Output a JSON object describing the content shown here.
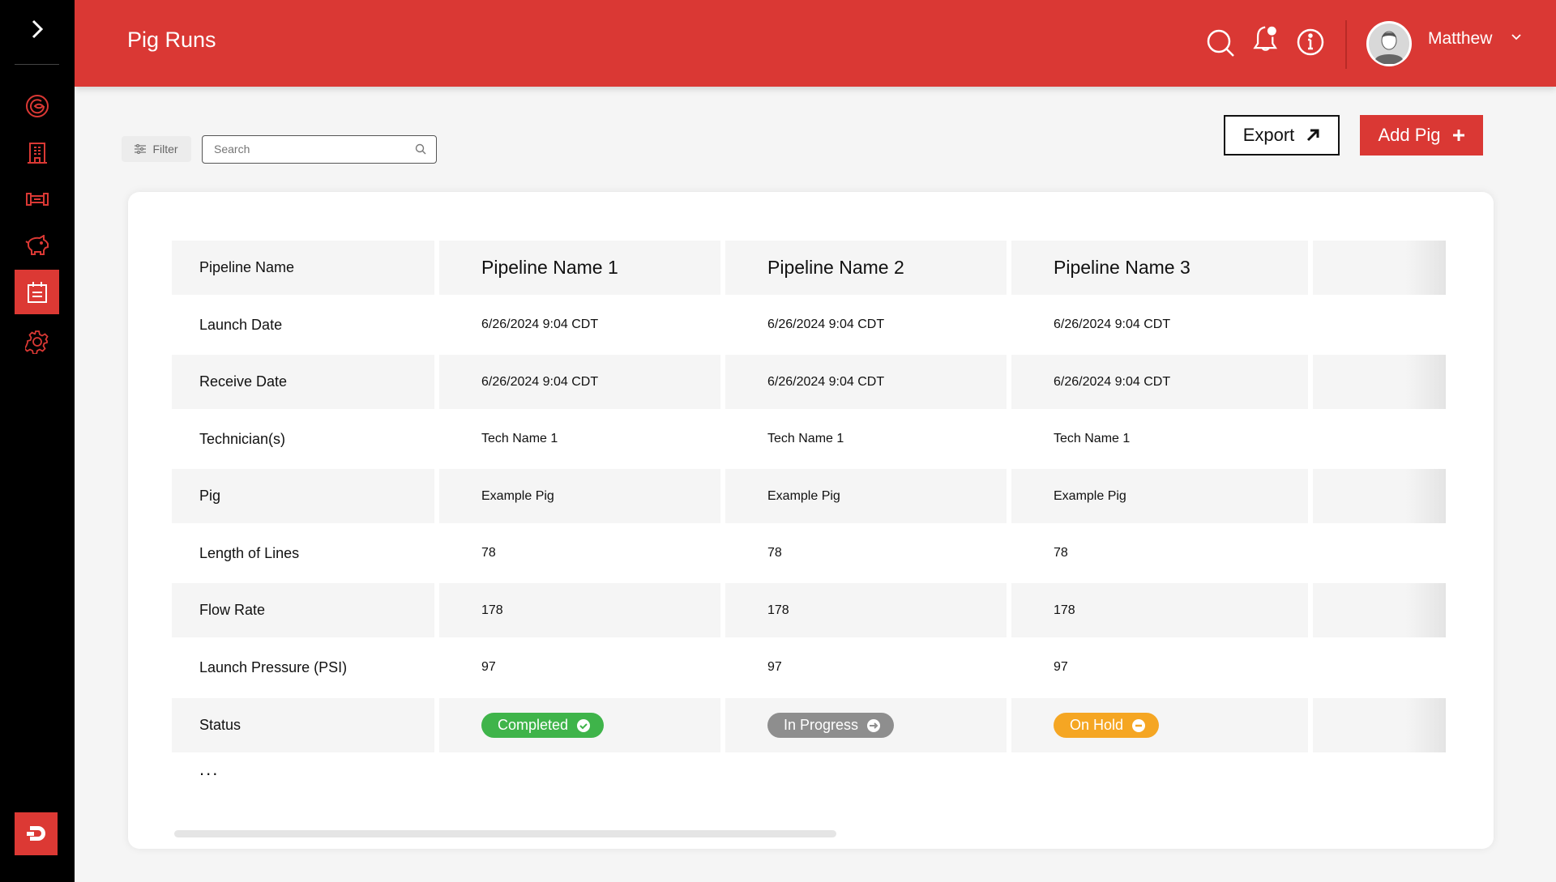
{
  "header": {
    "title": "Pig Runs",
    "user_name": "Matthew"
  },
  "toolbar": {
    "filter_label": "Filter",
    "search_placeholder": "Search",
    "export_label": "Export",
    "add_label": "Add Pig"
  },
  "colors": {
    "brand": "#da3834",
    "completed": "#3fb44a",
    "in_progress": "#8e8e8e",
    "on_hold": "#f5a623"
  },
  "table": {
    "rows": [
      {
        "label": "Pipeline Name",
        "values": [
          "Pipeline Name 1",
          "Pipeline Name 2",
          "Pipeline Name 3"
        ]
      },
      {
        "label": "Launch Date",
        "values": [
          "6/26/2024 9:04 CDT",
          "6/26/2024 9:04 CDT",
          "6/26/2024 9:04 CDT"
        ]
      },
      {
        "label": "Receive Date",
        "values": [
          "6/26/2024 9:04 CDT",
          "6/26/2024 9:04 CDT",
          "6/26/2024 9:04 CDT"
        ]
      },
      {
        "label": "Technician(s)",
        "values": [
          "Tech Name 1",
          "Tech Name 1",
          "Tech Name 1"
        ]
      },
      {
        "label": "Pig",
        "values": [
          "Example Pig",
          "Example Pig",
          "Example Pig"
        ]
      },
      {
        "label": "Length of Lines",
        "values": [
          "78",
          "78",
          "78"
        ]
      },
      {
        "label": "Flow Rate",
        "values": [
          "178",
          "178",
          "178"
        ]
      },
      {
        "label": "Launch Pressure (PSI)",
        "values": [
          "97",
          "97",
          "97"
        ]
      }
    ],
    "status_label": "Status",
    "statuses": [
      {
        "label": "Completed",
        "icon": "check-circle-icon"
      },
      {
        "label": "In Progress",
        "icon": "arrow-right-circle-icon"
      },
      {
        "label": "On Hold",
        "icon": "minus-circle-icon"
      }
    ],
    "more": "..."
  }
}
